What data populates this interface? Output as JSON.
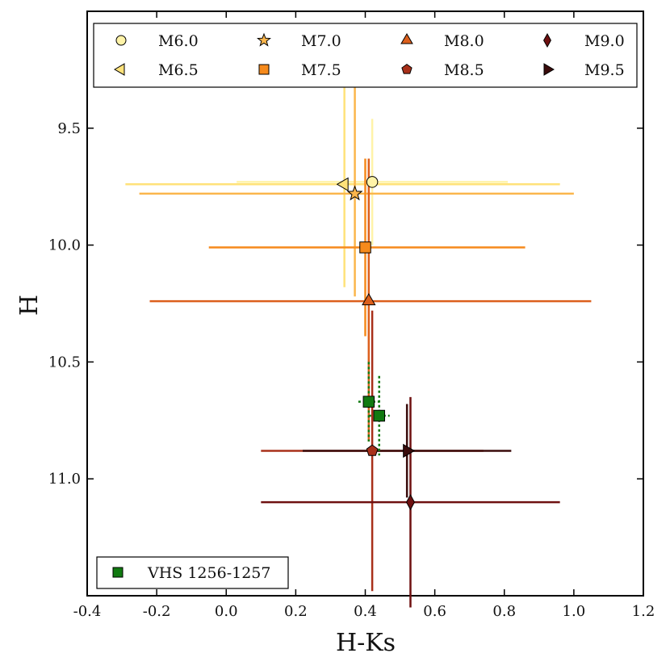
{
  "chart_data": {
    "type": "scatter",
    "xlabel": "H-Ks",
    "ylabel": "H",
    "xlim": [
      -0.4,
      1.2
    ],
    "ylim": [
      11.5,
      9.0
    ],
    "y_inverted": true,
    "x_ticks": [
      -0.4,
      -0.2,
      0.0,
      0.2,
      0.4,
      0.6,
      0.8,
      1.0,
      1.2
    ],
    "x_tick_labels": [
      "-0.4",
      "-0.2",
      "0.0",
      "0.2",
      "0.4",
      "0.6",
      "0.8",
      "1.0",
      "1.2"
    ],
    "y_ticks": [
      9.5,
      10.0,
      10.5,
      11.0
    ],
    "y_tick_labels": [
      "9.5",
      "10.0",
      "10.5",
      "11.0"
    ],
    "series": [
      {
        "name": "M6.0",
        "marker": "circle",
        "color": "#fff3a8",
        "x": 0.42,
        "y": 9.73,
        "xerr": [
          0.39,
          0.39
        ],
        "yerr": [
          0.27,
          0.27
        ]
      },
      {
        "name": "M6.5",
        "marker": "triangle-left",
        "color": "#ffe27a",
        "x": 0.34,
        "y": 9.74,
        "xerr": [
          0.63,
          0.62
        ],
        "yerr": [
          0.44,
          0.44
        ]
      },
      {
        "name": "M7.0",
        "marker": "star",
        "color": "#fbb64c",
        "x": 0.37,
        "y": 9.78,
        "xerr": [
          0.62,
          0.63
        ],
        "yerr": [
          0.46,
          0.44
        ]
      },
      {
        "name": "M7.5",
        "marker": "square",
        "color": "#f68a1c",
        "x": 0.4,
        "y": 10.01,
        "xerr": [
          0.45,
          0.46
        ],
        "yerr": [
          0.38,
          0.38
        ]
      },
      {
        "name": "M8.0",
        "marker": "triangle-up",
        "color": "#dc5f1c",
        "x": 0.41,
        "y": 10.24,
        "xerr": [
          0.63,
          0.64
        ],
        "yerr": [
          0.61,
          0.6
        ]
      },
      {
        "name": "M8.5",
        "marker": "pentagon",
        "color": "#a8301a",
        "x": 0.42,
        "y": 10.88,
        "xerr": [
          0.32,
          0.32
        ],
        "yerr": [
          0.6,
          0.6
        ]
      },
      {
        "name": "M9.0",
        "marker": "diamond",
        "color": "#6e1010",
        "x": 0.53,
        "y": 11.1,
        "xerr": [
          0.43,
          0.43
        ],
        "yerr": [
          0.45,
          0.45
        ]
      },
      {
        "name": "M9.5",
        "marker": "triangle-right",
        "color": "#3a0c0c",
        "x": 0.52,
        "y": 10.88,
        "xerr": [
          0.3,
          0.3
        ],
        "yerr": [
          0.2,
          0.2
        ]
      }
    ],
    "highlight": {
      "name": "VHS 1256-1257",
      "marker": "square",
      "color": "#117a11",
      "points": [
        {
          "x": 0.41,
          "y": 10.67,
          "xerr": [
            0.03,
            0.03
          ],
          "yerr": [
            0.17,
            0.17
          ]
        },
        {
          "x": 0.44,
          "y": 10.73,
          "xerr": [
            0.03,
            0.03
          ],
          "yerr": [
            0.17,
            0.17
          ]
        }
      ]
    }
  }
}
